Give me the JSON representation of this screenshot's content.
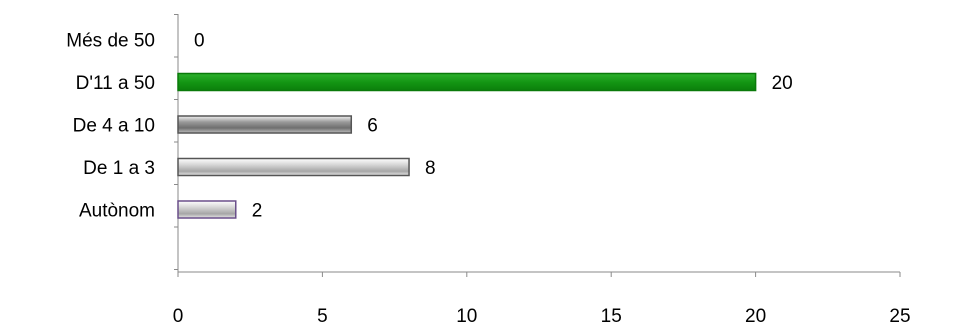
{
  "chart_data": {
    "type": "bar",
    "orientation": "horizontal",
    "categories": [
      "Més de 50",
      "D'11 a 50",
      "De 4 a 10",
      "De 1 a 3",
      "Autònom"
    ],
    "values": [
      0,
      20,
      6,
      8,
      2
    ],
    "data_labels": [
      "0",
      "20",
      "6",
      "8",
      "2"
    ],
    "xlim": [
      0,
      25
    ],
    "x_ticks": [
      0,
      5,
      10,
      15,
      20,
      25
    ],
    "x_tick_labels": [
      "0",
      "5",
      "10",
      "15",
      "20",
      "25"
    ],
    "grid": false,
    "legend": "none",
    "title": "",
    "xlabel": "",
    "ylabel": "",
    "bar_colors": [
      "#888888",
      "#1a9a1a",
      "#8c8c8c",
      "#b8b8b8",
      "#b8b8b8"
    ],
    "bar_borders": [
      "#555555",
      "#0a7a0a",
      "#555555",
      "#555555",
      "#6a4f8a"
    ]
  }
}
